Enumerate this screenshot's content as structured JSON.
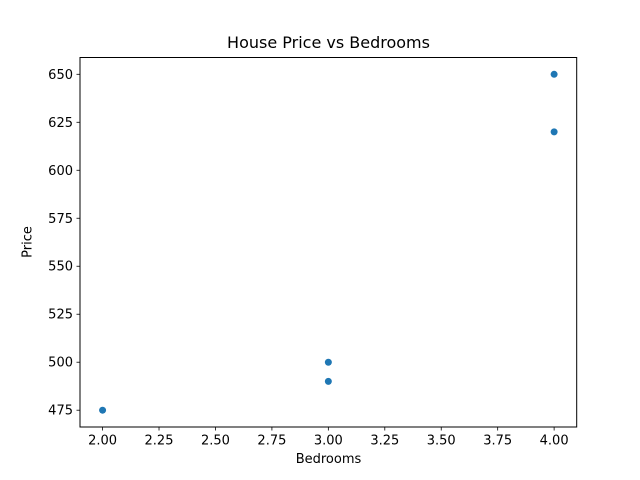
{
  "chart_data": {
    "type": "scatter",
    "title": "House Price vs Bedrooms",
    "xlabel": "Bedrooms",
    "ylabel": "Price",
    "x": [
      2,
      3,
      3,
      4,
      4
    ],
    "y": [
      475,
      500,
      490,
      650,
      620
    ],
    "xlim": [
      1.9,
      4.1
    ],
    "ylim": [
      466.25,
      658.75
    ],
    "xticks": [
      2.0,
      2.25,
      2.5,
      2.75,
      3.0,
      3.25,
      3.5,
      3.75,
      4.0
    ],
    "xtick_labels": [
      "2.00",
      "2.25",
      "2.50",
      "2.75",
      "3.00",
      "3.25",
      "3.50",
      "3.75",
      "4.00"
    ],
    "yticks": [
      475,
      500,
      525,
      550,
      575,
      600,
      625,
      650
    ],
    "ytick_labels": [
      "475",
      "500",
      "525",
      "550",
      "575",
      "600",
      "625",
      "650"
    ],
    "marker_color": "#1f77b4",
    "spine_color": "#000000",
    "grid": false,
    "legend": null
  }
}
